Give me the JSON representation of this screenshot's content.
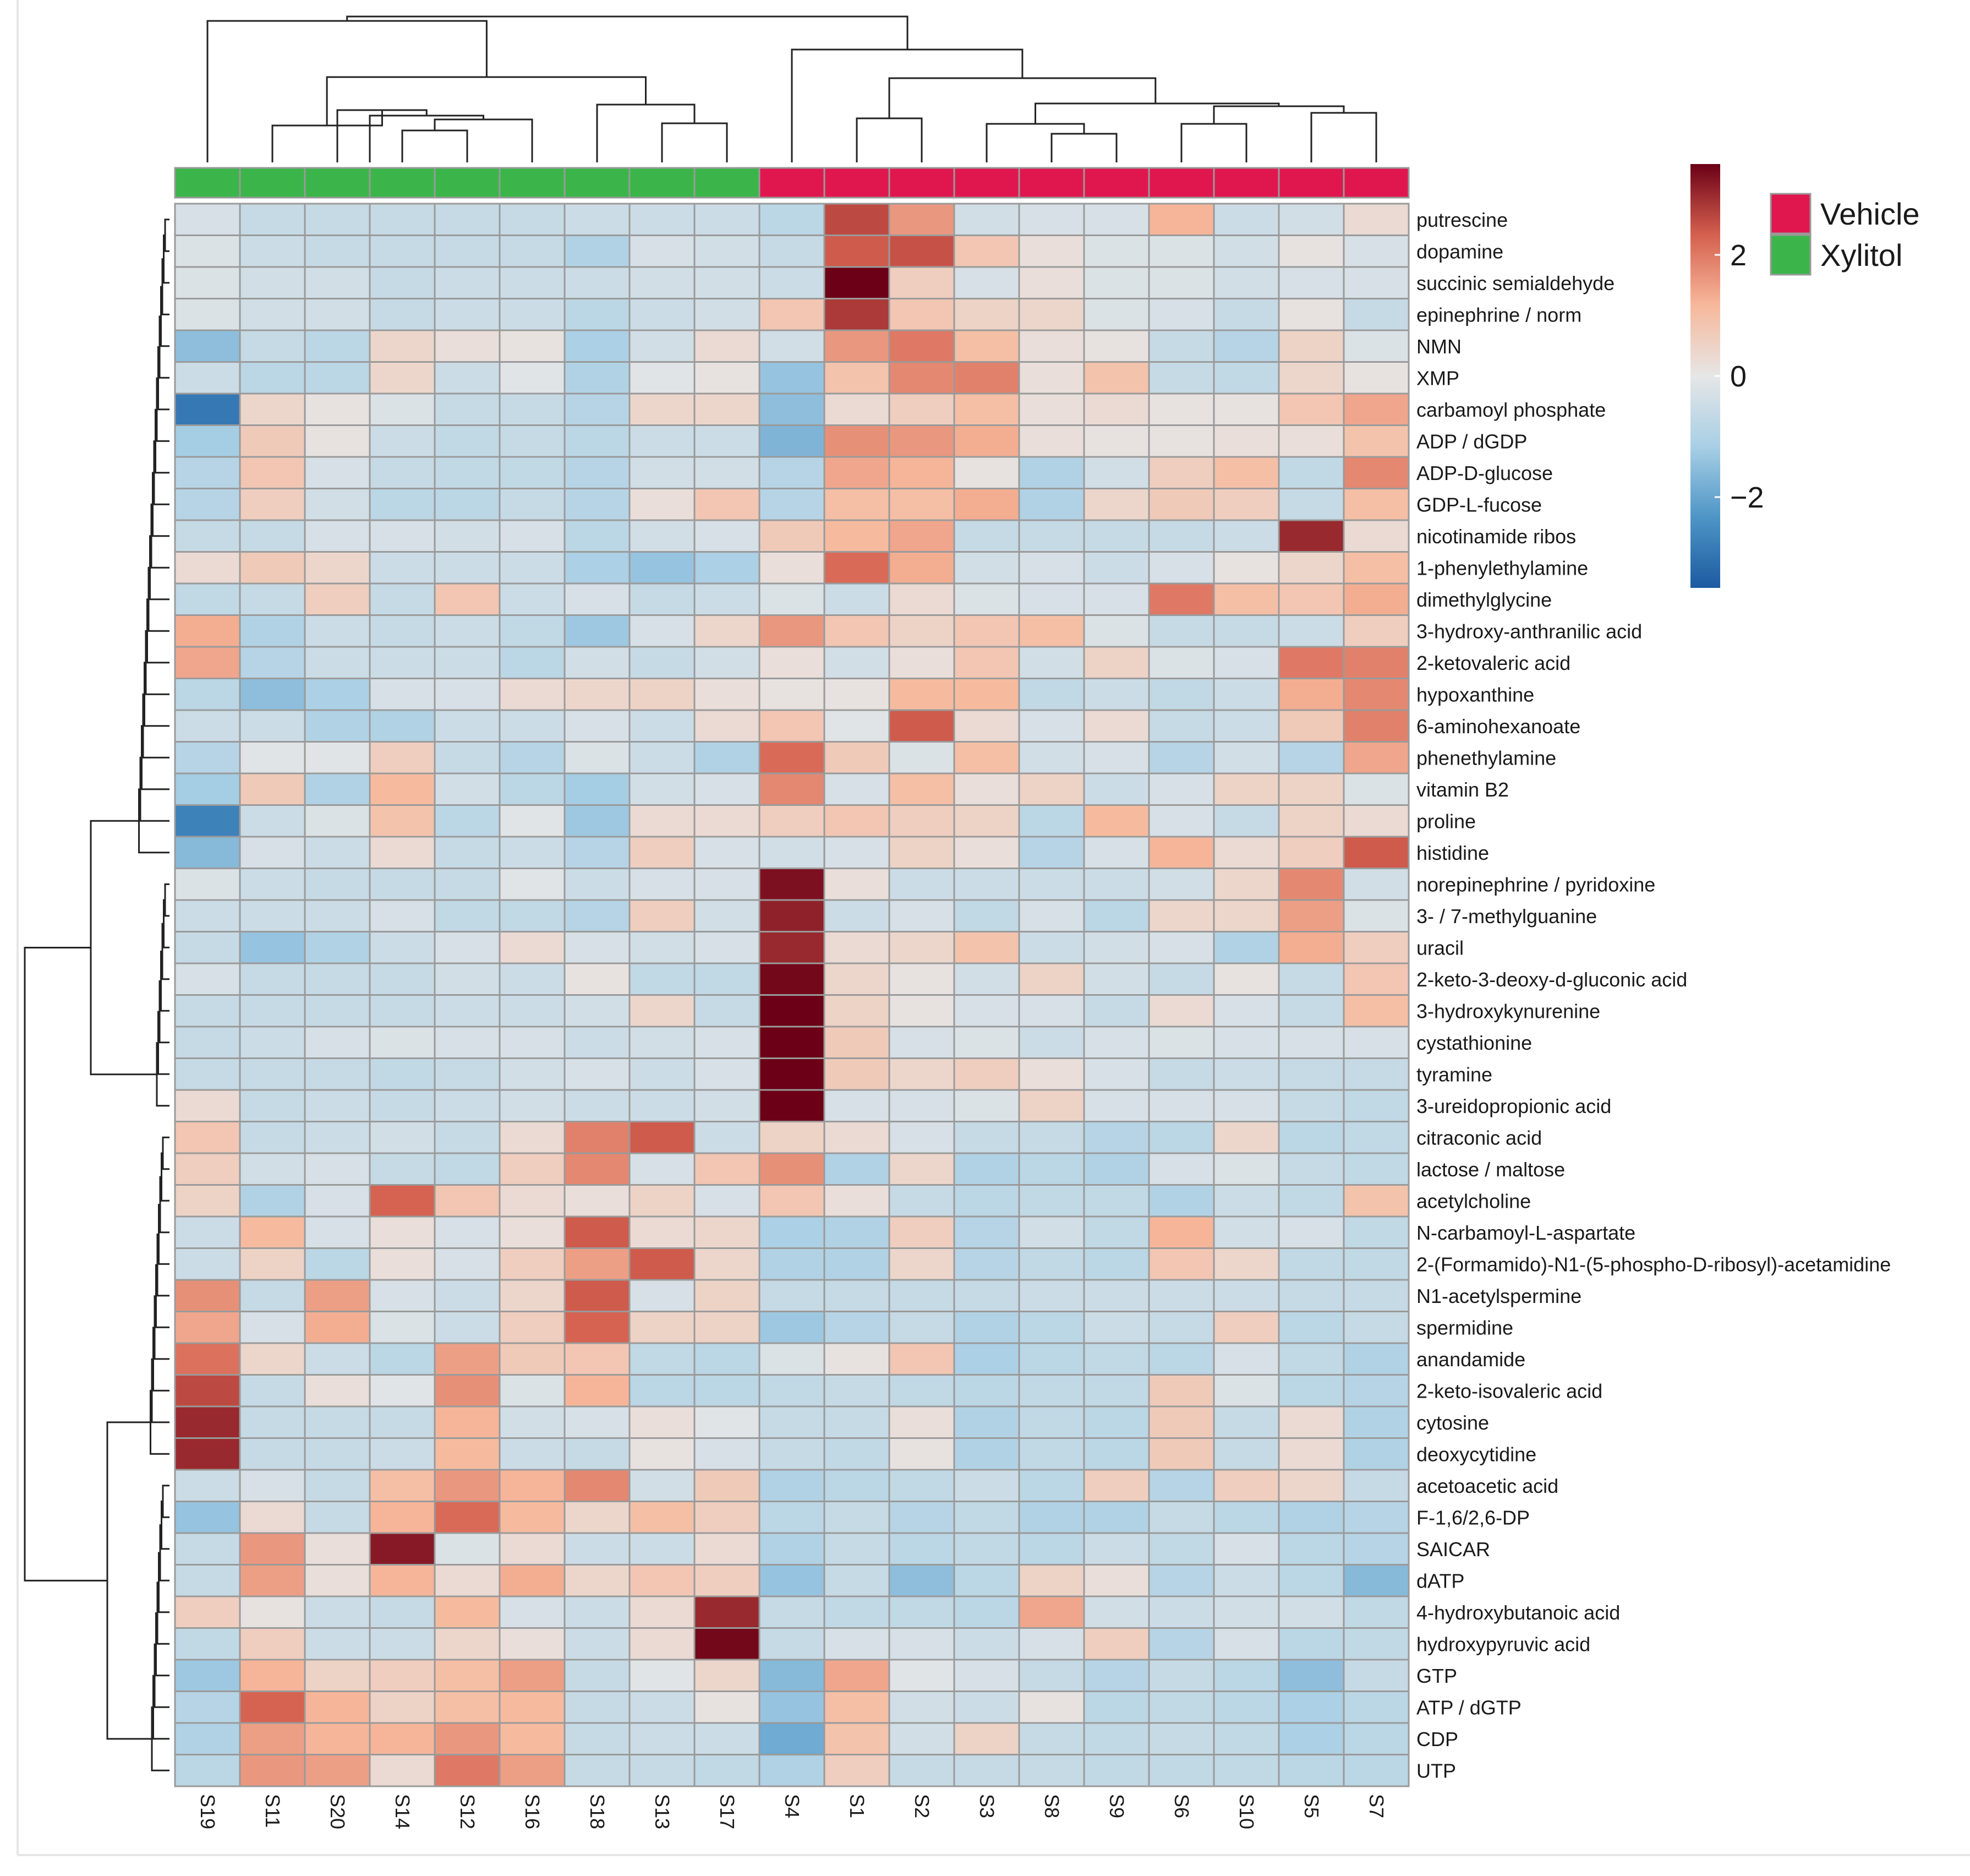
{
  "chart_data": {
    "type": "heatmap",
    "samples": [
      "S19",
      "S11",
      "S20",
      "S14",
      "S12",
      "S16",
      "S18",
      "S13",
      "S17",
      "S4",
      "S1",
      "S2",
      "S3",
      "S8",
      "S9",
      "S6",
      "S10",
      "S5",
      "S7"
    ],
    "groups": [
      "Xylitol",
      "Xylitol",
      "Xylitol",
      "Xylitol",
      "Xylitol",
      "Xylitol",
      "Xylitol",
      "Xylitol",
      "Xylitol",
      "Vehicle",
      "Vehicle",
      "Vehicle",
      "Vehicle",
      "Vehicle",
      "Vehicle",
      "Vehicle",
      "Vehicle",
      "Vehicle",
      "Vehicle"
    ],
    "group_legend": [
      {
        "name": "Vehicle",
        "color": "#e0174f"
      },
      {
        "name": "Xylitol",
        "color": "#3bb54a"
      }
    ],
    "color_scale": {
      "min": -3.5,
      "max": 3.5,
      "ticks": [
        2,
        0,
        -2
      ],
      "tick_labels": [
        "2",
        "0",
        "−2"
      ],
      "colors": [
        "#1c5aa0",
        "#4e95c6",
        "#a8cfe5",
        "#e6e6e6",
        "#f7b89b",
        "#d5604f",
        "#6b0016"
      ]
    },
    "metabolites": [
      "putrescine",
      "dopamine",
      "succinic semialdehyde",
      "epinephrine / norm",
      "NMN",
      "XMP",
      "carbamoyl phosphate",
      "ADP / dGDP",
      "ADP-D-glucose",
      "GDP-L-fucose",
      "nicotinamide ribos",
      "1-phenylethylamine",
      "dimethylglycine",
      "3-hydroxy-anthranilic acid",
      "2-ketovaleric acid",
      "hypoxanthine",
      "6-aminohexanoate",
      "phenethylamine",
      "vitamin B2",
      "proline",
      "histidine",
      "norepinephrine / pyridoxine",
      "3- / 7-methylguanine",
      "uracil",
      "2-keto-3-deoxy-d-gluconic acid",
      "3-hydroxykynurenine",
      "cystathionine",
      "tyramine",
      "3-ureidopropionic acid",
      "citraconic acid",
      "lactose / maltose",
      "acetylcholine",
      "N-carbamoyl-L-aspartate",
      "2-(Formamido)-N1-(5-phospho-D-ribosyl)-acetamidine",
      "N1-acetylspermine",
      "spermidine",
      "anandamide",
      "2-keto-isovaleric acid",
      "cytosine",
      "deoxycytidine",
      "acetoacetic acid",
      "F-1,6/2,6-DP",
      "SAICAR",
      "dATP",
      "4-hydroxybutanoic acid",
      "hydroxypyruvic acid",
      "GTP",
      "ATP / dGTP",
      "CDP",
      "UTP"
    ],
    "values": [
      [
        -0.3,
        -0.6,
        -0.6,
        -0.6,
        -0.6,
        -0.6,
        -0.5,
        -0.5,
        -0.5,
        -0.8,
        2.6,
        1.6,
        -0.4,
        -0.3,
        -0.3,
        1.2,
        -0.5,
        -0.4,
        0.3
      ],
      [
        -0.2,
        -0.5,
        -0.6,
        -0.6,
        -0.6,
        -0.6,
        -1.0,
        -0.3,
        -0.4,
        -0.6,
        2.4,
        2.5,
        0.8,
        0.2,
        -0.2,
        -0.2,
        -0.4,
        0.1,
        -0.3
      ],
      [
        -0.2,
        -0.4,
        -0.4,
        -0.6,
        -0.5,
        -0.5,
        -0.5,
        -0.4,
        -0.4,
        -0.5,
        3.5,
        0.6,
        -0.3,
        0.2,
        -0.2,
        -0.2,
        -0.4,
        -0.3,
        -0.3
      ],
      [
        -0.2,
        -0.4,
        -0.4,
        -0.6,
        -0.5,
        -0.5,
        -0.8,
        -0.5,
        -0.4,
        0.8,
        2.8,
        0.8,
        0.5,
        0.4,
        -0.2,
        -0.3,
        -0.6,
        0.1,
        -0.6
      ],
      [
        -1.5,
        -0.6,
        -0.8,
        0.4,
        0.2,
        0.1,
        -1.1,
        -0.4,
        0.3,
        -0.4,
        1.6,
        2.0,
        1.0,
        0.2,
        0.1,
        -0.6,
        -0.9,
        0.5,
        -0.2
      ],
      [
        -0.5,
        -0.8,
        -0.8,
        0.4,
        -0.5,
        -0.1,
        -1.0,
        -0.1,
        0.1,
        -1.4,
        0.9,
        1.8,
        1.9,
        0.2,
        0.9,
        -0.6,
        -0.7,
        0.4,
        0.1
      ],
      [
        -2.9,
        0.4,
        0.1,
        -0.2,
        -0.6,
        -0.6,
        -0.9,
        0.4,
        0.4,
        -1.5,
        0.3,
        0.6,
        1.0,
        0.2,
        0.3,
        0.1,
        0.1,
        0.8,
        1.4
      ],
      [
        -1.2,
        0.7,
        0.1,
        -0.5,
        -0.7,
        -0.6,
        -0.8,
        -0.5,
        -0.5,
        -1.7,
        1.7,
        1.6,
        1.3,
        0.2,
        0.1,
        0.1,
        0.2,
        0.2,
        0.9
      ],
      [
        -0.9,
        0.8,
        -0.3,
        -0.6,
        -0.7,
        -0.7,
        -0.9,
        -0.4,
        -0.4,
        -0.9,
        1.4,
        1.2,
        0.1,
        -1.0,
        -0.4,
        0.6,
        1.0,
        -0.7,
        1.8
      ],
      [
        -0.9,
        0.6,
        -0.4,
        -0.8,
        -0.8,
        -0.6,
        -0.9,
        0.2,
        0.8,
        -0.9,
        1.0,
        1.0,
        1.3,
        -1.0,
        0.4,
        0.7,
        0.6,
        -0.6,
        1.0
      ],
      [
        -0.6,
        -0.6,
        -0.3,
        -0.3,
        -0.4,
        -0.3,
        -0.8,
        -0.4,
        -0.3,
        0.7,
        1.1,
        1.4,
        -0.6,
        -0.6,
        -0.6,
        -0.6,
        -0.5,
        3.0,
        0.3
      ],
      [
        0.3,
        0.7,
        0.4,
        -0.5,
        -0.5,
        -0.5,
        -1.1,
        -1.4,
        -1.1,
        0.2,
        2.2,
        1.3,
        -0.4,
        -0.3,
        -0.5,
        -0.3,
        0.1,
        0.4,
        1.0
      ],
      [
        -0.7,
        -0.6,
        0.6,
        -0.6,
        0.8,
        -0.5,
        -0.3,
        -0.6,
        -0.5,
        -0.2,
        -0.5,
        0.3,
        -0.2,
        -0.3,
        -0.3,
        2.0,
        1.0,
        0.8,
        1.3
      ],
      [
        1.3,
        -1.0,
        -0.5,
        -0.6,
        -0.5,
        -0.7,
        -1.3,
        -0.3,
        0.4,
        1.6,
        0.8,
        0.5,
        0.8,
        1.0,
        -0.2,
        -0.6,
        -0.6,
        -0.5,
        0.6
      ],
      [
        1.4,
        -0.9,
        -0.5,
        -0.5,
        -0.5,
        -0.8,
        -0.4,
        -0.6,
        -0.4,
        0.2,
        -0.4,
        0.2,
        0.8,
        -0.4,
        0.5,
        -0.2,
        -0.3,
        2.0,
        1.9
      ],
      [
        -0.8,
        -1.5,
        -1.1,
        -0.3,
        -0.3,
        0.3,
        0.4,
        0.5,
        0.2,
        0.1,
        0.1,
        1.1,
        1.1,
        -0.7,
        -0.5,
        -0.7,
        -0.5,
        1.3,
        1.8
      ],
      [
        -0.5,
        -0.5,
        -1.0,
        -1.0,
        -0.5,
        -0.5,
        -0.3,
        -0.5,
        0.3,
        0.8,
        -0.1,
        2.4,
        0.3,
        -0.3,
        0.3,
        -0.6,
        -0.5,
        0.7,
        1.9
      ],
      [
        -0.9,
        -0.1,
        -0.1,
        0.6,
        -0.6,
        -0.9,
        -0.2,
        -0.5,
        -1.0,
        2.2,
        0.7,
        -0.2,
        1.0,
        -0.4,
        -0.3,
        -0.9,
        -0.4,
        -0.9,
        1.4
      ],
      [
        -1.2,
        0.7,
        -1.0,
        1.1,
        -0.4,
        -0.8,
        -1.2,
        -0.4,
        -0.3,
        1.8,
        -0.3,
        1.0,
        0.2,
        0.5,
        -0.5,
        -0.3,
        0.5,
        0.5,
        -0.2
      ],
      [
        -2.7,
        -0.5,
        -0.2,
        0.9,
        -0.8,
        -0.1,
        -1.3,
        0.3,
        0.3,
        0.6,
        0.8,
        0.6,
        0.5,
        -0.8,
        1.1,
        -0.3,
        -0.6,
        0.5,
        0.3
      ],
      [
        -1.6,
        -0.3,
        -0.5,
        0.3,
        -0.6,
        -0.5,
        -0.9,
        0.6,
        -0.3,
        -0.4,
        -0.3,
        0.5,
        0.2,
        -0.9,
        -0.3,
        1.2,
        0.3,
        0.6,
        2.4
      ],
      [
        -0.2,
        -0.5,
        -0.6,
        -0.6,
        -0.6,
        -0.1,
        -0.5,
        -0.3,
        -0.3,
        3.3,
        0.2,
        -0.5,
        -0.5,
        -0.5,
        -0.5,
        -0.4,
        0.4,
        1.8,
        -0.4
      ],
      [
        -0.5,
        -0.5,
        -0.5,
        -0.3,
        -0.7,
        -0.7,
        -0.9,
        0.6,
        -0.4,
        3.1,
        -0.5,
        -0.3,
        -0.7,
        -0.3,
        -0.8,
        0.4,
        0.4,
        1.5,
        -0.2
      ],
      [
        -0.6,
        -1.4,
        -1.0,
        -0.5,
        -0.3,
        0.3,
        -0.3,
        -0.4,
        -0.3,
        3.0,
        0.3,
        0.4,
        0.9,
        -0.5,
        -0.4,
        -0.3,
        -1.0,
        1.3,
        0.6
      ],
      [
        -0.3,
        -0.6,
        -0.6,
        -0.6,
        -0.4,
        -0.5,
        0.1,
        -0.7,
        -0.7,
        3.4,
        0.4,
        0.1,
        -0.4,
        0.5,
        -0.4,
        -0.6,
        0.1,
        -0.6,
        0.8
      ],
      [
        -0.6,
        -0.6,
        -0.6,
        -0.6,
        -0.5,
        -0.5,
        -0.4,
        0.4,
        -0.6,
        3.5,
        0.5,
        0.1,
        -0.3,
        -0.3,
        -0.6,
        0.3,
        -0.3,
        -0.6,
        1.0
      ],
      [
        -0.6,
        -0.5,
        -0.3,
        -0.2,
        -0.3,
        -0.3,
        -0.5,
        -0.4,
        -0.3,
        3.5,
        0.7,
        -0.3,
        -0.2,
        -0.5,
        -0.3,
        -0.2,
        -0.3,
        -0.3,
        -0.3
      ],
      [
        -0.6,
        -0.6,
        -0.6,
        -0.7,
        -0.6,
        -0.4,
        -0.3,
        -0.5,
        -0.3,
        3.5,
        0.7,
        0.4,
        0.6,
        0.2,
        -0.3,
        -0.6,
        -0.5,
        -0.6,
        -0.6
      ],
      [
        0.3,
        -0.6,
        -0.5,
        -0.6,
        -0.5,
        -0.4,
        -0.5,
        -0.5,
        -0.4,
        3.5,
        -0.3,
        -0.3,
        -0.2,
        0.5,
        -0.3,
        -0.3,
        -0.3,
        -0.6,
        -0.7
      ],
      [
        0.8,
        -0.6,
        -0.5,
        -0.4,
        -0.6,
        0.3,
        1.9,
        2.4,
        -0.5,
        0.5,
        0.3,
        -0.3,
        -0.6,
        -0.6,
        -0.9,
        -0.8,
        0.4,
        -0.8,
        -0.7
      ],
      [
        0.6,
        -0.4,
        -0.3,
        -0.6,
        -0.7,
        0.6,
        1.8,
        -0.3,
        0.8,
        1.7,
        -1.0,
        0.4,
        -1.0,
        -0.8,
        -1.0,
        -0.3,
        -0.2,
        -0.6,
        -0.7
      ],
      [
        0.5,
        -1.0,
        -0.3,
        2.3,
        0.8,
        0.3,
        0.2,
        0.5,
        -0.3,
        0.8,
        0.2,
        -0.6,
        -0.8,
        -0.7,
        -0.7,
        -1.0,
        -0.5,
        -0.7,
        0.9
      ],
      [
        -0.5,
        1.1,
        -0.3,
        0.2,
        -0.3,
        0.2,
        2.4,
        0.3,
        0.4,
        -1.1,
        -1.0,
        0.6,
        -0.9,
        -0.4,
        -0.7,
        1.2,
        -0.4,
        -0.3,
        -0.7
      ],
      [
        -0.5,
        0.5,
        -0.8,
        0.2,
        -0.3,
        0.6,
        1.5,
        2.4,
        0.4,
        -1.0,
        -1.0,
        0.4,
        -0.9,
        -0.7,
        -0.8,
        0.8,
        0.4,
        -0.7,
        -0.7
      ],
      [
        1.7,
        -0.6,
        1.5,
        -0.3,
        -0.5,
        0.4,
        2.4,
        -0.3,
        0.5,
        -0.6,
        -0.6,
        -0.6,
        -0.6,
        -0.5,
        -0.5,
        -0.5,
        -0.5,
        -0.6,
        -0.6
      ],
      [
        1.4,
        -0.3,
        1.3,
        -0.2,
        -0.5,
        0.6,
        2.3,
        0.5,
        0.5,
        -1.3,
        -0.9,
        -0.6,
        -1.0,
        -0.8,
        -0.5,
        -0.6,
        0.6,
        -0.8,
        -0.6
      ],
      [
        2.1,
        0.4,
        -0.5,
        -0.8,
        1.5,
        0.7,
        0.8,
        -0.7,
        -0.8,
        -0.2,
        0.1,
        0.8,
        -1.1,
        -0.8,
        -0.7,
        -0.8,
        -0.3,
        -0.7,
        -1.0
      ],
      [
        2.6,
        -0.6,
        0.2,
        -0.1,
        1.7,
        -0.2,
        1.2,
        -0.8,
        -0.8,
        -0.7,
        -0.6,
        -0.7,
        -0.8,
        -0.7,
        -0.7,
        0.7,
        -0.2,
        -0.8,
        -0.9
      ],
      [
        3.0,
        -0.6,
        -0.6,
        -0.6,
        1.2,
        -0.4,
        -0.3,
        0.2,
        -0.1,
        -0.6,
        -0.6,
        0.2,
        -1.0,
        -0.7,
        -0.8,
        0.7,
        -0.6,
        0.3,
        -1.0
      ],
      [
        3.0,
        -0.6,
        -0.6,
        -0.5,
        1.1,
        -0.5,
        -0.6,
        0.1,
        -0.3,
        -0.6,
        -0.7,
        0.1,
        -1.0,
        -0.7,
        -0.8,
        0.7,
        -0.6,
        0.3,
        -1.0
      ],
      [
        -0.5,
        -0.3,
        -0.6,
        1.0,
        1.6,
        1.2,
        1.8,
        -0.4,
        0.7,
        -1.0,
        -0.8,
        -0.7,
        -0.5,
        -0.8,
        0.6,
        -0.9,
        0.6,
        0.4,
        -0.6
      ],
      [
        -1.4,
        0.3,
        -0.6,
        1.2,
        2.2,
        1.1,
        0.4,
        1.0,
        0.6,
        -0.8,
        -0.6,
        -0.9,
        -0.7,
        -1.0,
        -1.0,
        -0.6,
        -0.8,
        -1.0,
        -0.9
      ],
      [
        -0.6,
        1.6,
        0.2,
        3.2,
        -0.2,
        0.3,
        -0.5,
        -0.5,
        0.3,
        -1.0,
        -0.6,
        -0.8,
        -0.7,
        -0.8,
        -0.5,
        -0.7,
        -0.3,
        -0.8,
        -0.9
      ],
      [
        -0.6,
        1.5,
        0.2,
        1.2,
        0.3,
        1.3,
        0.4,
        0.8,
        0.6,
        -1.4,
        -0.6,
        -1.5,
        -0.8,
        0.5,
        0.2,
        -0.9,
        -0.5,
        -0.8,
        -1.6
      ],
      [
        0.6,
        0.1,
        -0.5,
        -0.6,
        1.1,
        -0.3,
        -0.5,
        0.3,
        3.0,
        -0.6,
        -0.7,
        -0.7,
        -0.8,
        1.4,
        -0.4,
        -0.5,
        -0.4,
        -0.4,
        -0.7
      ],
      [
        -0.7,
        0.6,
        -0.5,
        -0.5,
        0.4,
        0.2,
        -0.5,
        0.3,
        3.4,
        -0.6,
        -0.3,
        -0.3,
        -0.5,
        -0.3,
        0.6,
        -0.9,
        -0.3,
        -0.8,
        -0.7
      ],
      [
        -1.3,
        1.2,
        0.5,
        0.6,
        1.0,
        1.5,
        -0.6,
        -0.1,
        0.4,
        -1.6,
        1.4,
        -0.1,
        -0.3,
        -0.6,
        -0.9,
        -0.6,
        -0.8,
        -1.5,
        -0.6
      ],
      [
        -0.9,
        2.3,
        1.2,
        0.5,
        1.0,
        1.1,
        -0.6,
        -0.5,
        0.1,
        -1.4,
        1.0,
        -0.4,
        -0.5,
        0.1,
        -0.8,
        -0.7,
        -0.8,
        -1.1,
        -0.8
      ],
      [
        -1.0,
        1.5,
        1.2,
        1.2,
        1.6,
        1.1,
        -0.6,
        -0.5,
        -0.5,
        -1.9,
        0.9,
        -0.4,
        0.5,
        -0.6,
        -0.7,
        -0.6,
        -0.7,
        -1.1,
        -0.8
      ],
      [
        -0.8,
        1.6,
        1.5,
        0.3,
        2.0,
        1.5,
        -0.6,
        -0.6,
        -0.7,
        -1.0,
        0.6,
        -0.6,
        -0.6,
        -0.6,
        -0.7,
        -0.7,
        -0.7,
        -0.8,
        -0.8
      ]
    ]
  }
}
